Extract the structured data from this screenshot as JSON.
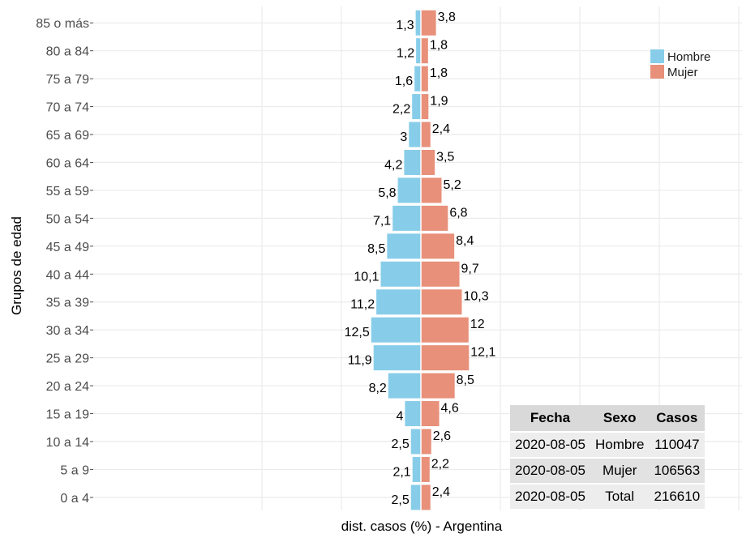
{
  "chart_data": {
    "type": "bar",
    "orientation": "horizontal-population-pyramid",
    "title": "",
    "xlabel": "dist. casos (%) - Argentina",
    "ylabel": "Grupos de edad",
    "categories": [
      "0 a 4",
      "5 a 9",
      "10 a 14",
      "15 a 19",
      "20 a 24",
      "25 a 29",
      "30 a 34",
      "35 a 39",
      "40 a 44",
      "45 a 49",
      "50 a 54",
      "55 a 59",
      "60 a 64",
      "65 a 69",
      "70 a 74",
      "75 a 79",
      "80 a 84",
      "85 o más"
    ],
    "series": [
      {
        "name": "Hombre",
        "color": "#87cde9",
        "values": [
          2.5,
          2.1,
          2.5,
          4,
          8.2,
          11.9,
          12.5,
          11.2,
          10.1,
          8.5,
          7.1,
          5.8,
          4.2,
          3,
          2.2,
          1.6,
          1.2,
          1.3
        ],
        "labels": [
          "2,5",
          "2,1",
          "2,5",
          "4",
          "8,2",
          "11,9",
          "12,5",
          "11,2",
          "10,1",
          "8,5",
          "7,1",
          "5,8",
          "4,2",
          "3",
          "2,2",
          "1,6",
          "1,2",
          "1,3"
        ]
      },
      {
        "name": "Mujer",
        "color": "#e8907a",
        "values": [
          2.4,
          2.2,
          2.6,
          4.6,
          8.5,
          12.1,
          12,
          10.3,
          9.7,
          8.4,
          6.8,
          5.2,
          3.5,
          2.4,
          1.9,
          1.8,
          1.8,
          3.8
        ],
        "labels": [
          "2,4",
          "2,2",
          "2,6",
          "4,6",
          "8,5",
          "12,1",
          "12",
          "10,3",
          "9,7",
          "8,4",
          "6,8",
          "5,2",
          "3,5",
          "2,4",
          "1,9",
          "1,8",
          "1,8",
          "3,8"
        ]
      }
    ],
    "xlim": [
      -40,
      80
    ],
    "grid": true,
    "legend_position": "top-right"
  },
  "table": {
    "headers": [
      "Fecha",
      "Sexo",
      "Casos"
    ],
    "rows": [
      [
        "2020-08-05",
        "Hombre",
        "110047"
      ],
      [
        "2020-08-05",
        "Mujer",
        "106563"
      ],
      [
        "2020-08-05",
        "Total",
        "216610"
      ]
    ]
  }
}
